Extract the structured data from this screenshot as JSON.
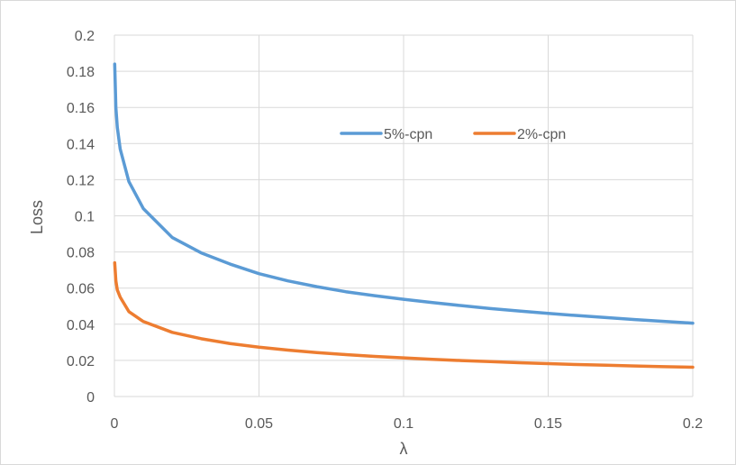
{
  "chart_data": {
    "type": "line",
    "title": "",
    "xlabel": "λ",
    "ylabel": "Loss",
    "xlim": [
      0,
      0.2
    ],
    "ylim": [
      0,
      0.2
    ],
    "x_ticks": [
      0,
      0.05,
      0.1,
      0.15,
      0.2
    ],
    "x_tick_labels": [
      "0",
      "0.05",
      "0.1",
      "0.15",
      "0.2"
    ],
    "y_ticks": [
      0,
      0.02,
      0.04,
      0.06,
      0.08,
      0.1,
      0.12,
      0.14,
      0.16,
      0.18,
      0.2
    ],
    "y_tick_labels": [
      "0",
      "0.02",
      "0.04",
      "0.06",
      "0.08",
      "0.1",
      "0.12",
      "0.14",
      "0.16",
      "0.18",
      "0.2"
    ],
    "grid": "on",
    "legend_position": "top-right inside plot",
    "series": [
      {
        "name": "5%-cpn",
        "color": "#5B9BD5",
        "points": [
          [
            0.0001,
            0.184
          ],
          [
            0.0005,
            0.16
          ],
          [
            0.001,
            0.149
          ],
          [
            0.002,
            0.137
          ],
          [
            0.005,
            0.119
          ],
          [
            0.01,
            0.104
          ],
          [
            0.02,
            0.088
          ],
          [
            0.03,
            0.0795
          ],
          [
            0.04,
            0.0733
          ],
          [
            0.05,
            0.068
          ],
          [
            0.06,
            0.064
          ],
          [
            0.07,
            0.0608
          ],
          [
            0.08,
            0.058
          ],
          [
            0.09,
            0.0558
          ],
          [
            0.1,
            0.0538
          ],
          [
            0.11,
            0.052
          ],
          [
            0.12,
            0.0503
          ],
          [
            0.13,
            0.0487
          ],
          [
            0.14,
            0.0473
          ],
          [
            0.15,
            0.046
          ],
          [
            0.16,
            0.0448
          ],
          [
            0.17,
            0.0437
          ],
          [
            0.18,
            0.0426
          ],
          [
            0.19,
            0.0416
          ],
          [
            0.2,
            0.0406
          ]
        ]
      },
      {
        "name": "2%-cpn",
        "color": "#ED7D31",
        "points": [
          [
            0.0001,
            0.074
          ],
          [
            0.0005,
            0.064
          ],
          [
            0.001,
            0.059
          ],
          [
            0.002,
            0.055
          ],
          [
            0.005,
            0.047
          ],
          [
            0.01,
            0.0415
          ],
          [
            0.02,
            0.0355
          ],
          [
            0.03,
            0.032
          ],
          [
            0.04,
            0.0293
          ],
          [
            0.05,
            0.0273
          ],
          [
            0.06,
            0.0257
          ],
          [
            0.07,
            0.0243
          ],
          [
            0.08,
            0.0232
          ],
          [
            0.09,
            0.0222
          ],
          [
            0.1,
            0.0214
          ],
          [
            0.11,
            0.0206
          ],
          [
            0.12,
            0.0199
          ],
          [
            0.13,
            0.0193
          ],
          [
            0.14,
            0.0187
          ],
          [
            0.15,
            0.0182
          ],
          [
            0.16,
            0.0177
          ],
          [
            0.17,
            0.0173
          ],
          [
            0.18,
            0.0169
          ],
          [
            0.19,
            0.0165
          ],
          [
            0.2,
            0.0162
          ]
        ]
      }
    ]
  }
}
